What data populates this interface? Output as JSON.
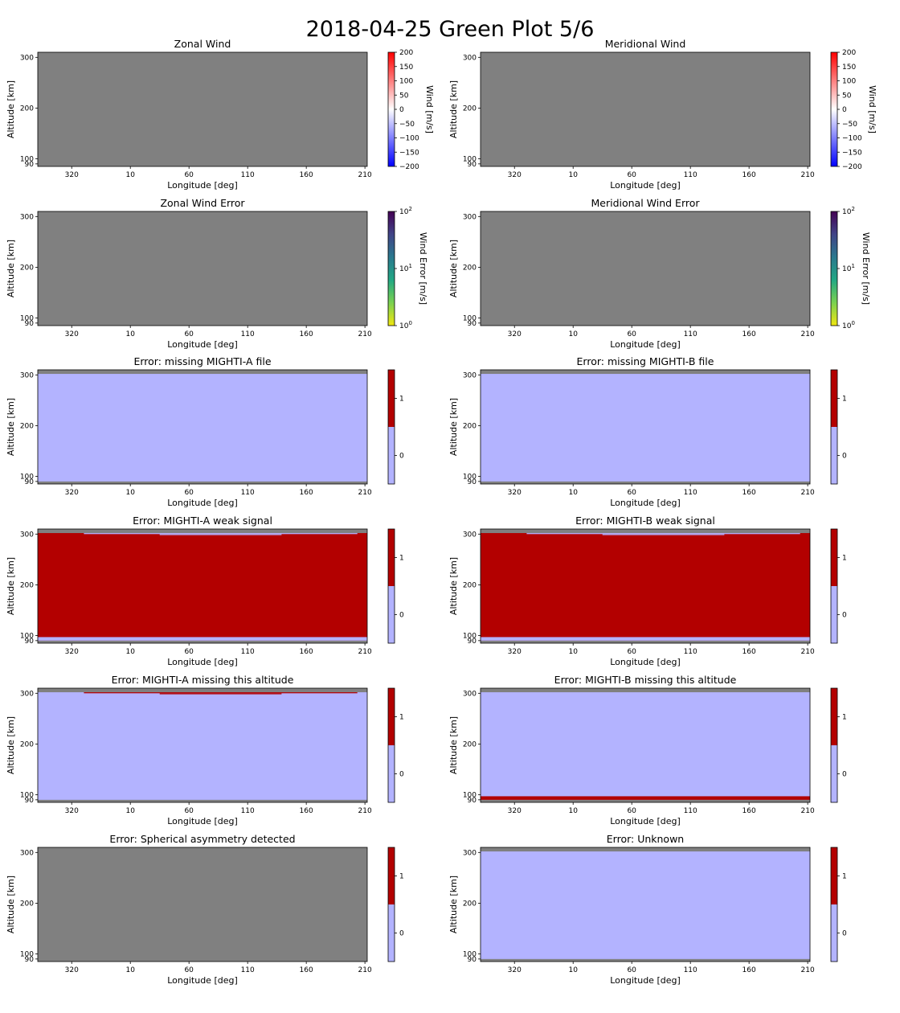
{
  "figure": {
    "title": "2018-04-25 Green Plot 5/6"
  },
  "colors": {
    "missing": "#808080",
    "flag_off": "#b3b3ff",
    "flag_on": "#b30000",
    "frame": "#000000"
  },
  "chart_data": [
    {
      "type": "heatmap",
      "title": "Zonal Wind",
      "xlabel": "Longitude [deg]",
      "ylabel": "Altitude [km]",
      "x_ticks": [
        "320",
        "10",
        "60",
        "110",
        "160",
        "210"
      ],
      "y_ticks": [
        90,
        100,
        200,
        300
      ],
      "ylim": [
        85,
        310
      ],
      "fills": [
        {
          "from": 85,
          "to": 310,
          "value": "no data"
        }
      ],
      "colorbar": {
        "kind": "diverging",
        "label": "Wind [m/s]",
        "range": [
          -200,
          200
        ],
        "ticks": [
          "200",
          "150",
          "100",
          "50",
          "0",
          "−50",
          "−100",
          "−150",
          "−200"
        ],
        "colors": [
          "#0000ff",
          "#ffffff",
          "#ff0000"
        ]
      }
    },
    {
      "type": "heatmap",
      "title": "Meridional Wind",
      "xlabel": "Longitude [deg]",
      "ylabel": "Altitude [km]",
      "x_ticks": [
        "320",
        "10",
        "60",
        "110",
        "160",
        "210"
      ],
      "y_ticks": [
        90,
        100,
        200,
        300
      ],
      "ylim": [
        85,
        310
      ],
      "fills": [
        {
          "from": 85,
          "to": 310,
          "value": "no data"
        }
      ],
      "colorbar": {
        "kind": "diverging",
        "label": "Wind [m/s]",
        "range": [
          -200,
          200
        ],
        "ticks": [
          "200",
          "150",
          "100",
          "50",
          "0",
          "−50",
          "−100",
          "−150",
          "−200"
        ],
        "colors": [
          "#0000ff",
          "#ffffff",
          "#ff0000"
        ]
      }
    },
    {
      "type": "heatmap",
      "title": "Zonal Wind Error",
      "xlabel": "Longitude [deg]",
      "ylabel": "Altitude [km]",
      "x_ticks": [
        "320",
        "10",
        "60",
        "110",
        "160",
        "210"
      ],
      "y_ticks": [
        90,
        100,
        200,
        300
      ],
      "ylim": [
        85,
        310
      ],
      "fills": [
        {
          "from": 85,
          "to": 310,
          "value": "no data"
        }
      ],
      "colorbar": {
        "kind": "log",
        "label": "Wind Error [m/s]",
        "range": [
          1,
          100
        ],
        "ticks": [
          {
            "base": "10",
            "exp": "2"
          },
          {
            "base": "10",
            "exp": "1"
          },
          {
            "base": "10",
            "exp": "0"
          }
        ],
        "colors": [
          "#f0e610",
          "#7ad151",
          "#22a884",
          "#2a788e",
          "#414487",
          "#440154"
        ]
      }
    },
    {
      "type": "heatmap",
      "title": "Meridional Wind Error",
      "xlabel": "Longitude [deg]",
      "ylabel": "Altitude [km]",
      "x_ticks": [
        "320",
        "10",
        "60",
        "110",
        "160",
        "210"
      ],
      "y_ticks": [
        90,
        100,
        200,
        300
      ],
      "ylim": [
        85,
        310
      ],
      "fills": [
        {
          "from": 85,
          "to": 310,
          "value": "no data"
        }
      ],
      "colorbar": {
        "kind": "log",
        "label": "Wind Error [m/s]",
        "range": [
          1,
          100
        ],
        "ticks": [
          {
            "base": "10",
            "exp": "2"
          },
          {
            "base": "10",
            "exp": "1"
          },
          {
            "base": "10",
            "exp": "0"
          }
        ],
        "colors": [
          "#f0e610",
          "#7ad151",
          "#22a884",
          "#2a788e",
          "#414487",
          "#440154"
        ]
      }
    },
    {
      "type": "heatmap",
      "title": "Error: missing MIGHTI-A file",
      "xlabel": "Longitude [deg]",
      "ylabel": "Altitude [km]",
      "x_ticks": [
        "320",
        "10",
        "60",
        "110",
        "160",
        "210"
      ],
      "y_ticks": [
        90,
        100,
        200,
        300
      ],
      "ylim": [
        85,
        310
      ],
      "fills": [
        {
          "from": 85,
          "to": 310,
          "value": "no data"
        },
        {
          "from": 90,
          "to": 302,
          "value": 0
        }
      ],
      "colorbar": {
        "kind": "flag",
        "ticks": [
          "1",
          "0"
        ]
      }
    },
    {
      "type": "heatmap",
      "title": "Error: missing MIGHTI-B file",
      "xlabel": "Longitude [deg]",
      "ylabel": "Altitude [km]",
      "x_ticks": [
        "320",
        "10",
        "60",
        "110",
        "160",
        "210"
      ],
      "y_ticks": [
        90,
        100,
        200,
        300
      ],
      "ylim": [
        85,
        310
      ],
      "fills": [
        {
          "from": 85,
          "to": 310,
          "value": "no data"
        },
        {
          "from": 90,
          "to": 302,
          "value": 0
        }
      ],
      "colorbar": {
        "kind": "flag",
        "ticks": [
          "1",
          "0"
        ]
      }
    },
    {
      "type": "heatmap",
      "title": "Error: MIGHTI-A weak signal",
      "xlabel": "Longitude [deg]",
      "ylabel": "Altitude [km]",
      "x_ticks": [
        "320",
        "10",
        "60",
        "110",
        "160",
        "210"
      ],
      "y_ticks": [
        90,
        100,
        200,
        300
      ],
      "ylim": [
        85,
        310
      ],
      "fills": [
        {
          "from": 85,
          "to": 310,
          "value": "no data"
        },
        {
          "from": 90,
          "to": 302,
          "value": 1
        },
        {
          "from": 90,
          "to": 97,
          "value": 0
        },
        {
          "from": 300,
          "to": 302,
          "value": 0,
          "x_from": 0.14,
          "x_to": 0.97
        },
        {
          "from": 298,
          "to": 300,
          "value": 0,
          "x_from": 0.37,
          "x_to": 0.74
        }
      ],
      "colorbar": {
        "kind": "flag",
        "ticks": [
          "1",
          "0"
        ]
      }
    },
    {
      "type": "heatmap",
      "title": "Error: MIGHTI-B weak signal",
      "xlabel": "Longitude [deg]",
      "ylabel": "Altitude [km]",
      "x_ticks": [
        "320",
        "10",
        "60",
        "110",
        "160",
        "210"
      ],
      "y_ticks": [
        90,
        100,
        200,
        300
      ],
      "ylim": [
        85,
        310
      ],
      "fills": [
        {
          "from": 85,
          "to": 310,
          "value": "no data"
        },
        {
          "from": 90,
          "to": 302,
          "value": 1
        },
        {
          "from": 90,
          "to": 97,
          "value": 0
        },
        {
          "from": 300,
          "to": 302,
          "value": 0,
          "x_from": 0.14,
          "x_to": 0.97
        },
        {
          "from": 298,
          "to": 300,
          "value": 0,
          "x_from": 0.37,
          "x_to": 0.74
        }
      ],
      "colorbar": {
        "kind": "flag",
        "ticks": [
          "1",
          "0"
        ]
      }
    },
    {
      "type": "heatmap",
      "title": "Error: MIGHTI-A missing this altitude",
      "xlabel": "Longitude [deg]",
      "ylabel": "Altitude [km]",
      "x_ticks": [
        "320",
        "10",
        "60",
        "110",
        "160",
        "210"
      ],
      "y_ticks": [
        90,
        100,
        200,
        300
      ],
      "ylim": [
        85,
        310
      ],
      "fills": [
        {
          "from": 85,
          "to": 310,
          "value": "no data"
        },
        {
          "from": 90,
          "to": 302,
          "value": 0
        },
        {
          "from": 300,
          "to": 302,
          "value": 1,
          "x_from": 0.14,
          "x_to": 0.97
        },
        {
          "from": 298,
          "to": 300,
          "value": 1,
          "x_from": 0.37,
          "x_to": 0.74
        }
      ],
      "colorbar": {
        "kind": "flag",
        "ticks": [
          "1",
          "0"
        ]
      }
    },
    {
      "type": "heatmap",
      "title": "Error: MIGHTI-B missing this altitude",
      "xlabel": "Longitude [deg]",
      "ylabel": "Altitude [km]",
      "x_ticks": [
        "320",
        "10",
        "60",
        "110",
        "160",
        "210"
      ],
      "y_ticks": [
        90,
        100,
        200,
        300
      ],
      "ylim": [
        85,
        310
      ],
      "fills": [
        {
          "from": 85,
          "to": 310,
          "value": "no data"
        },
        {
          "from": 90,
          "to": 302,
          "value": 0
        },
        {
          "from": 90,
          "to": 97,
          "value": 1
        }
      ],
      "colorbar": {
        "kind": "flag",
        "ticks": [
          "1",
          "0"
        ]
      }
    },
    {
      "type": "heatmap",
      "title": "Error: Spherical asymmetry detected",
      "xlabel": "Longitude [deg]",
      "ylabel": "Altitude [km]",
      "x_ticks": [
        "320",
        "10",
        "60",
        "110",
        "160",
        "210"
      ],
      "y_ticks": [
        90,
        100,
        200,
        300
      ],
      "ylim": [
        85,
        310
      ],
      "fills": [
        {
          "from": 85,
          "to": 310,
          "value": "no data"
        }
      ],
      "colorbar": {
        "kind": "flag",
        "ticks": [
          "1",
          "0"
        ]
      }
    },
    {
      "type": "heatmap",
      "title": "Error: Unknown",
      "xlabel": "Longitude [deg]",
      "ylabel": "Altitude [km]",
      "x_ticks": [
        "320",
        "10",
        "60",
        "110",
        "160",
        "210"
      ],
      "y_ticks": [
        90,
        100,
        200,
        300
      ],
      "ylim": [
        85,
        310
      ],
      "fills": [
        {
          "from": 85,
          "to": 310,
          "value": "no data"
        },
        {
          "from": 90,
          "to": 302,
          "value": 0
        }
      ],
      "colorbar": {
        "kind": "flag",
        "ticks": [
          "1",
          "0"
        ]
      }
    }
  ]
}
